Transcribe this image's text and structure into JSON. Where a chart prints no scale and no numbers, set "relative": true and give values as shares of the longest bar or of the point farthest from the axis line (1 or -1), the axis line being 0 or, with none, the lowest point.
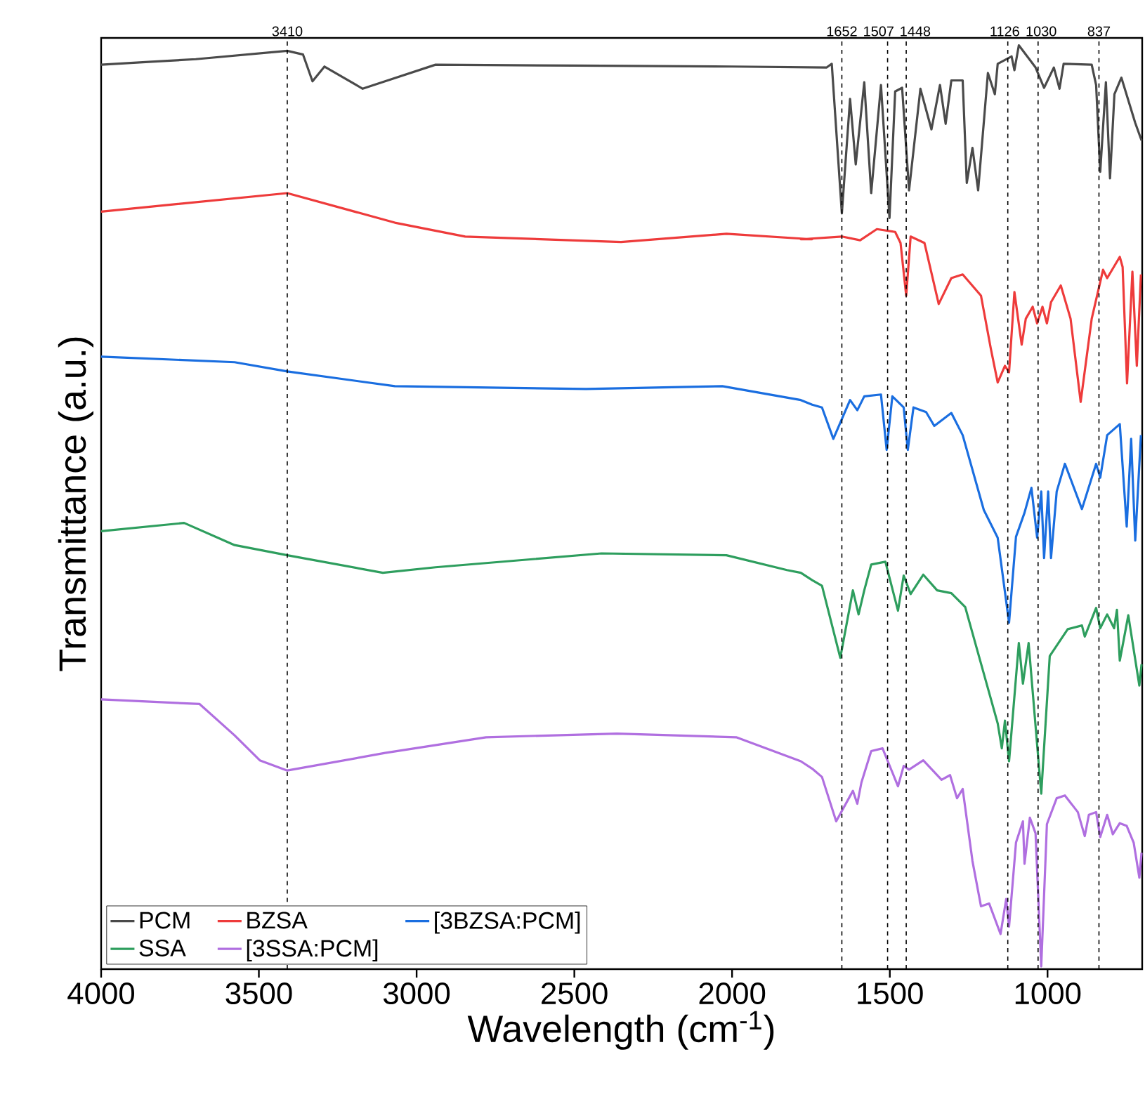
{
  "chart_data": {
    "type": "line",
    "xlabel": "Wavelength (cm$^{-1}$)",
    "ylabel": "Transmittance (a.u.)",
    "relative": true,
    "tick_labels": "x",
    "marker": "none",
    "legend": "bottom left",
    "xlim": [
      4000,
      700
    ],
    "xticks": [
      4000,
      3500,
      3000,
      2500,
      2000,
      1500,
      1000
    ],
    "ref_lines": [
      {
        "axis": "x",
        "value": 3410,
        "label": "3410",
        "color": "#000000",
        "line_style": "dashed"
      },
      {
        "axis": "x",
        "value": 1652,
        "label": "1652",
        "color": "#000000",
        "line_style": "dashed"
      },
      {
        "axis": "x",
        "value": 1507,
        "label": "1507",
        "color": "#000000",
        "line_style": "dashed"
      },
      {
        "axis": "x",
        "value": 1448,
        "label": "1448",
        "color": "#000000",
        "line_style": "dashed"
      },
      {
        "axis": "x",
        "value": 1126,
        "label": "1126",
        "color": "#000000",
        "line_style": "dashed"
      },
      {
        "axis": "x",
        "value": 1030,
        "label": "1030",
        "color": "#000000",
        "line_style": "dashed"
      },
      {
        "axis": "x",
        "value": 837,
        "label": "837",
        "color": "#000000",
        "line_style": "dashed"
      }
    ],
    "series": [
      {
        "name": "PCM",
        "color": "#4a4a4a",
        "x": [
          4000,
          3850,
          3700,
          3410,
          3360,
          3330,
          3292,
          3171,
          3100,
          2940,
          2500,
          2000,
          1700,
          1684,
          1652,
          1626,
          1608,
          1581,
          1559,
          1528,
          1501,
          1483,
          1461,
          1439,
          1403,
          1368,
          1341,
          1323,
          1305,
          1269,
          1256,
          1238,
          1220,
          1189,
          1167,
          1158,
          1114,
          1105,
          1091,
          1038,
          1011,
          980,
          962,
          949,
          860,
          846,
          833,
          815,
          802,
          788,
          766,
          722,
          702
        ],
        "values": [
          0.979,
          0.982,
          0.985,
          0.994,
          0.99,
          0.961,
          0.977,
          0.953,
          0.961,
          0.979,
          0.978,
          0.977,
          0.976,
          0.98,
          0.818,
          0.942,
          0.871,
          0.96,
          0.84,
          0.957,
          0.813,
          0.95,
          0.954,
          0.843,
          0.953,
          0.909,
          0.957,
          0.915,
          0.962,
          0.962,
          0.851,
          0.889,
          0.843,
          0.97,
          0.947,
          0.98,
          0.988,
          0.973,
          1.0,
          0.976,
          0.954,
          0.976,
          0.953,
          0.98,
          0.979,
          0.957,
          0.863,
          0.96,
          0.856,
          0.947,
          0.965,
          0.916,
          0.897
        ]
      },
      {
        "name": "BZSA",
        "color": "#ee3b3b",
        "x": [
          4000,
          3410,
          3069,
          2846,
          2352,
          2018,
          1746,
          1782,
          1652,
          1594,
          1541,
          1483,
          1466,
          1448,
          1434,
          1390,
          1345,
          1305,
          1269,
          1211,
          1180,
          1158,
          1135,
          1122,
          1105,
          1082,
          1069,
          1047,
          1033,
          1016,
          1002,
          989,
          958,
          927,
          895,
          860,
          824,
          811,
          771,
          762,
          748,
          731,
          717,
          704
        ],
        "values": [
          0.82,
          0.84,
          0.808,
          0.793,
          0.787,
          0.796,
          0.79,
          0.79,
          0.793,
          0.789,
          0.801,
          0.798,
          0.786,
          0.729,
          0.793,
          0.786,
          0.72,
          0.748,
          0.752,
          0.729,
          0.672,
          0.635,
          0.653,
          0.646,
          0.733,
          0.676,
          0.704,
          0.717,
          0.699,
          0.717,
          0.699,
          0.722,
          0.74,
          0.704,
          0.614,
          0.704,
          0.757,
          0.748,
          0.771,
          0.76,
          0.634,
          0.755,
          0.653,
          0.752
        ]
      },
      {
        "name": "[3BZSA:PCM]",
        "color": "#1a6ee0",
        "x": [
          4000,
          3577,
          3410,
          3069,
          2463,
          2031,
          1782,
          1746,
          1715,
          1679,
          1626,
          1603,
          1581,
          1528,
          1510,
          1492,
          1456,
          1443,
          1425,
          1385,
          1359,
          1305,
          1269,
          1202,
          1158,
          1122,
          1100,
          1073,
          1051,
          1033,
          1020,
          1011,
          998,
          989,
          971,
          945,
          891,
          846,
          833,
          811,
          771,
          749,
          735,
          722,
          704
        ],
        "values": [
          0.663,
          0.657,
          0.647,
          0.631,
          0.628,
          0.631,
          0.616,
          0.611,
          0.608,
          0.574,
          0.616,
          0.605,
          0.62,
          0.622,
          0.562,
          0.62,
          0.608,
          0.562,
          0.608,
          0.603,
          0.588,
          0.602,
          0.578,
          0.497,
          0.467,
          0.375,
          0.468,
          0.494,
          0.521,
          0.467,
          0.517,
          0.445,
          0.517,
          0.445,
          0.517,
          0.547,
          0.498,
          0.547,
          0.532,
          0.578,
          0.59,
          0.479,
          0.574,
          0.464,
          0.578
        ]
      },
      {
        "name": "SSA",
        "color": "#2e9e5e",
        "x": [
          4000,
          3737,
          3577,
          3410,
          3107,
          2940,
          2414,
          2018,
          1826,
          1782,
          1746,
          1715,
          1657,
          1617,
          1599,
          1581,
          1559,
          1514,
          1474,
          1456,
          1434,
          1394,
          1350,
          1305,
          1261,
          1189,
          1158,
          1145,
          1135,
          1122,
          1091,
          1078,
          1060,
          1020,
          993,
          936,
          891,
          882,
          846,
          833,
          811,
          789,
          780,
          771,
          744,
          709,
          702
        ],
        "values": [
          0.474,
          0.483,
          0.459,
          0.448,
          0.429,
          0.435,
          0.45,
          0.448,
          0.432,
          0.429,
          0.421,
          0.415,
          0.337,
          0.41,
          0.384,
          0.41,
          0.438,
          0.441,
          0.388,
          0.426,
          0.406,
          0.427,
          0.41,
          0.407,
          0.392,
          0.304,
          0.266,
          0.239,
          0.269,
          0.225,
          0.353,
          0.309,
          0.353,
          0.19,
          0.339,
          0.368,
          0.372,
          0.36,
          0.391,
          0.369,
          0.384,
          0.369,
          0.389,
          0.334,
          0.383,
          0.307,
          0.33
        ]
      },
      {
        "name": "[3SSA:PCM]",
        "color": "#b06fe0",
        "x": [
          4000,
          3688,
          3577,
          3497,
          3410,
          3100,
          2780,
          2365,
          1987,
          1782,
          1746,
          1715,
          1670,
          1617,
          1603,
          1590,
          1559,
          1523,
          1474,
          1456,
          1439,
          1394,
          1336,
          1309,
          1287,
          1269,
          1238,
          1211,
          1185,
          1149,
          1131,
          1122,
          1100,
          1078,
          1073,
          1056,
          1038,
          1020,
          1002,
          971,
          945,
          904,
          882,
          869,
          846,
          833,
          811,
          793,
          771,
          749,
          727,
          709,
          702
        ],
        "values": [
          0.292,
          0.287,
          0.253,
          0.226,
          0.215,
          0.234,
          0.251,
          0.255,
          0.251,
          0.225,
          0.217,
          0.208,
          0.16,
          0.193,
          0.179,
          0.202,
          0.236,
          0.239,
          0.198,
          0.22,
          0.216,
          0.226,
          0.205,
          0.21,
          0.185,
          0.195,
          0.117,
          0.068,
          0.071,
          0.038,
          0.076,
          0.046,
          0.137,
          0.16,
          0.114,
          0.164,
          0.147,
          0.003,
          0.157,
          0.185,
          0.188,
          0.17,
          0.144,
          0.167,
          0.17,
          0.143,
          0.167,
          0.146,
          0.158,
          0.155,
          0.137,
          0.099,
          0.126
        ]
      }
    ]
  }
}
